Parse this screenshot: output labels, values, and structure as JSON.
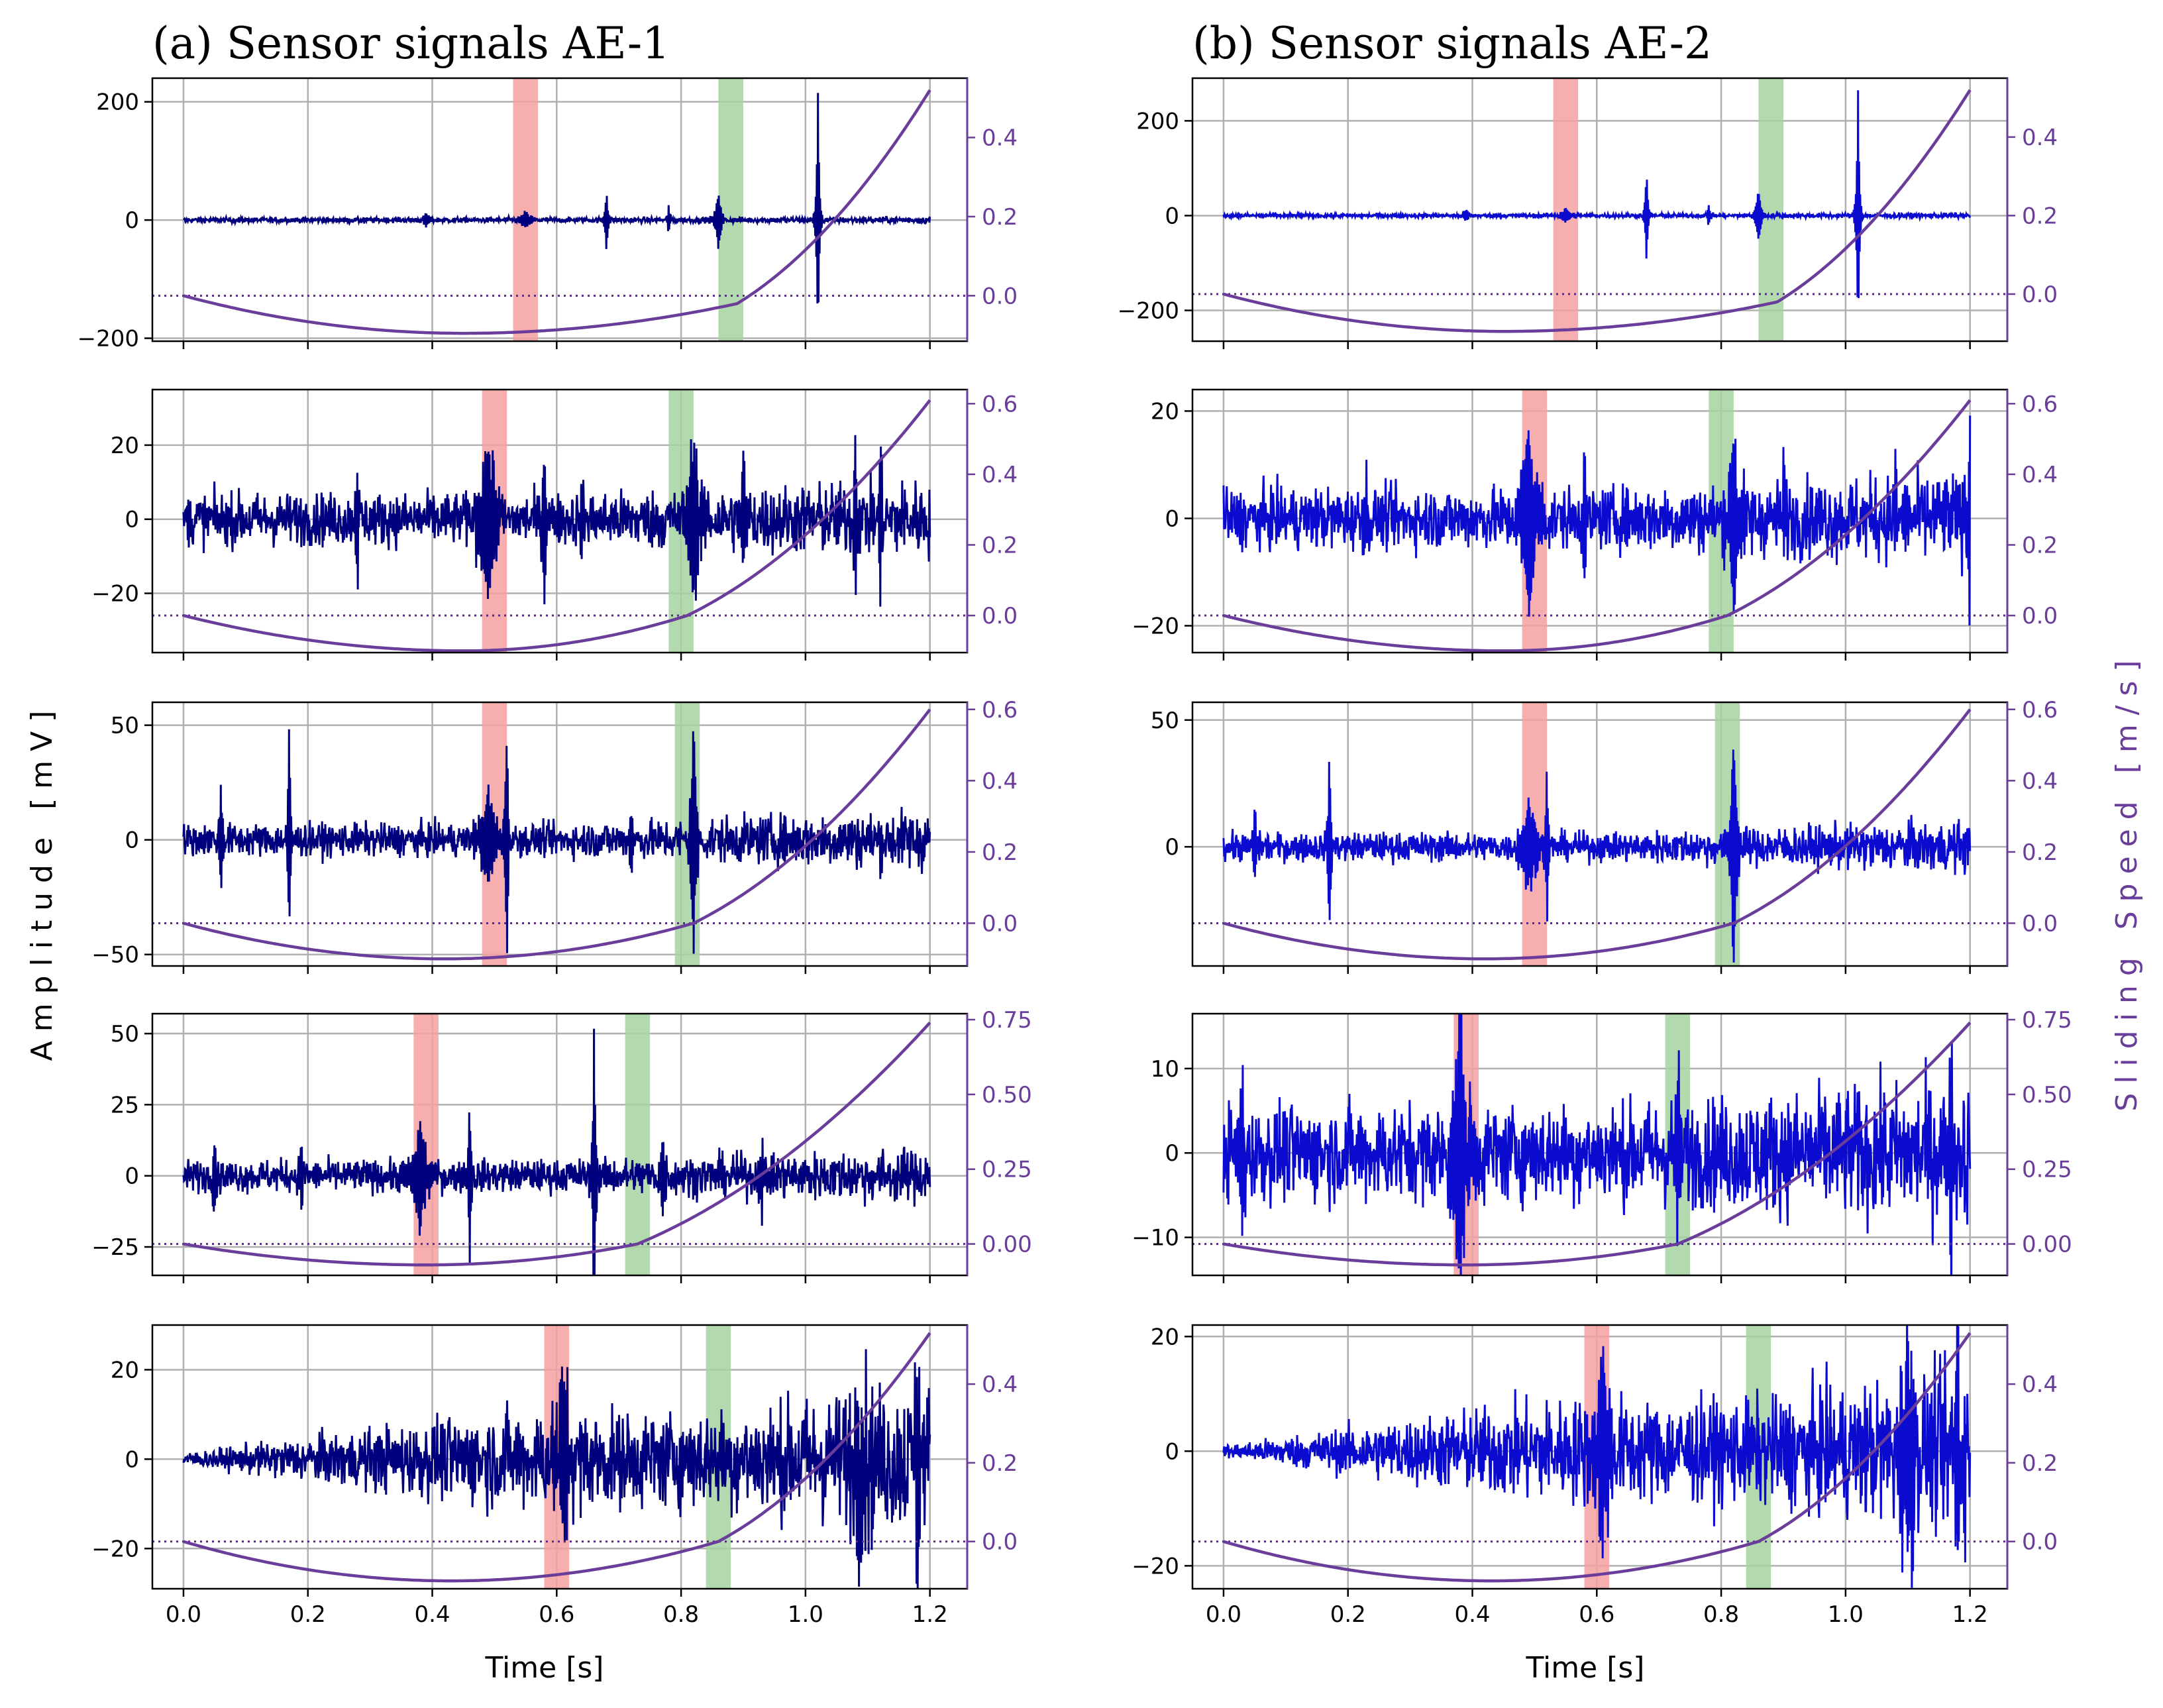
{
  "colors": {
    "signal_ae1": "#00007f",
    "signal_ae2": "#0b0bcf",
    "speed": "#6a3d9a",
    "zero_line": "#5a2a8a",
    "red_band": "#f4a0a0",
    "green_band": "#a6d4a0",
    "grid": "#b0b0b0",
    "right_axis": "#6a3d9a"
  },
  "chart_data": {
    "type": "line",
    "shared": {
      "left_ylabel": "Amplitude [mV]",
      "right_ylabel": "Sliding Speed [m/s]",
      "xlabel": "Time [s]",
      "x_range": [
        -0.05,
        1.26
      ],
      "x_ticks": [
        0.0,
        0.2,
        0.4,
        0.6,
        0.8,
        1.0,
        1.2
      ],
      "x_tick_labels": [
        "0.0",
        "0.2",
        "0.4",
        "0.6",
        "0.8",
        "1.0",
        "1.2"
      ],
      "grid": true
    },
    "columns": [
      {
        "title": "(a) Sensor signals AE-1",
        "signal_color_key": "signal_ae1",
        "rows": [
          {
            "ylim": [
              -205,
              240
            ],
            "y_ticks": [
              -200,
              0,
              200
            ],
            "y_tick_labels": [
              "−200",
              "0",
              "200"
            ],
            "rlim": [
              -0.115,
              0.55
            ],
            "r_ticks": [
              0.0,
              0.2,
              0.4
            ],
            "r_tick_labels": [
              "0.0",
              "0.2",
              "0.4"
            ],
            "red_band": [
              0.53,
              0.57
            ],
            "green_band": [
              0.86,
              0.9
            ],
            "speed": {
              "min": -0.095,
              "t_min": 0.45,
              "t_knee": 0.89,
              "v_knee": -0.02,
              "v_end": 0.52
            },
            "noise": 3,
            "noise_growth": 0.3,
            "bursts": [
              [
                0.09,
                6,
                0.004
              ],
              [
                0.29,
                6,
                0.004
              ],
              [
                0.39,
                12,
                0.005
              ],
              [
                0.55,
                14,
                0.008
              ],
              [
                0.68,
                55,
                0.002
              ],
              [
                0.78,
                25,
                0.002
              ],
              [
                0.86,
                50,
                0.004
              ],
              [
                1.02,
                220,
                0.002
              ]
            ]
          },
          {
            "ylim": [
              -36,
              35
            ],
            "y_ticks": [
              -20,
              0,
              20
            ],
            "y_tick_labels": [
              "−20",
              "0",
              "20"
            ],
            "rlim": [
              -0.105,
              0.64
            ],
            "r_ticks": [
              0.0,
              0.2,
              0.4,
              0.6
            ],
            "r_tick_labels": [
              "0.0",
              "0.2",
              "0.4",
              "0.6"
            ],
            "red_band": [
              0.48,
              0.52
            ],
            "green_band": [
              0.78,
              0.82
            ],
            "speed": {
              "min": -0.1,
              "t_min": 0.45,
              "t_knee": 0.81,
              "v_knee": 0.0,
              "v_end": 0.61
            },
            "noise": 5,
            "noise_growth": 0.5,
            "bursts": [
              [
                0.28,
                20,
                0.002
              ],
              [
                0.49,
                22,
                0.012
              ],
              [
                0.58,
                24,
                0.002
              ],
              [
                0.64,
                18,
                0.002
              ],
              [
                0.82,
                22,
                0.008
              ],
              [
                0.9,
                20,
                0.002
              ],
              [
                1.08,
                22,
                0.002
              ],
              [
                1.12,
                24,
                0.002
              ]
            ]
          },
          {
            "ylim": [
              -55,
              60
            ],
            "y_ticks": [
              -50,
              0,
              50
            ],
            "y_tick_labels": [
              "−50",
              "0",
              "50"
            ],
            "rlim": [
              -0.12,
              0.62
            ],
            "r_ticks": [
              0.0,
              0.2,
              0.4,
              0.6
            ],
            "r_tick_labels": [
              "0.0",
              "0.2",
              "0.4",
              "0.6"
            ],
            "red_band": [
              0.48,
              0.52
            ],
            "green_band": [
              0.79,
              0.83
            ],
            "speed": {
              "min": -0.1,
              "t_min": 0.42,
              "t_knee": 0.82,
              "v_knee": 0.0,
              "v_end": 0.6
            },
            "noise": 5,
            "noise_growth": 0.9,
            "bursts": [
              [
                0.06,
                28,
                0.002
              ],
              [
                0.17,
                50,
                0.002
              ],
              [
                0.49,
                22,
                0.01
              ],
              [
                0.52,
                56,
                0.002
              ],
              [
                0.72,
                12,
                0.004
              ],
              [
                0.82,
                50,
                0.004
              ]
            ]
          },
          {
            "ylim": [
              -35,
              57
            ],
            "y_ticks": [
              -25,
              0,
              25,
              50
            ],
            "y_tick_labels": [
              "−25",
              "0",
              "25",
              "50"
            ],
            "rlim": [
              -0.105,
              0.77
            ],
            "r_ticks": [
              0.0,
              0.25,
              0.5,
              0.75
            ],
            "r_tick_labels": [
              "0.00",
              "0.25",
              "0.50",
              "0.75"
            ],
            "red_band": [
              0.37,
              0.41
            ],
            "green_band": [
              0.71,
              0.75
            ],
            "speed": {
              "min": -0.07,
              "t_min": 0.39,
              "t_knee": 0.73,
              "v_knee": 0.0,
              "v_end": 0.74
            },
            "noise": 4,
            "noise_growth": 0.7,
            "bursts": [
              [
                0.05,
                12,
                0.003
              ],
              [
                0.19,
                14,
                0.002
              ],
              [
                0.38,
                18,
                0.01
              ],
              [
                0.46,
                34,
                0.002
              ],
              [
                0.66,
                54,
                0.002
              ],
              [
                0.77,
                17,
                0.003
              ],
              [
                0.93,
                12,
                0.002
              ]
            ]
          },
          {
            "ylim": [
              -29,
              30
            ],
            "y_ticks": [
              -20,
              0,
              20
            ],
            "y_tick_labels": [
              "−20",
              "0",
              "20"
            ],
            "rlim": [
              -0.12,
              0.55
            ],
            "r_ticks": [
              0.0,
              0.2,
              0.4
            ],
            "r_tick_labels": [
              "0.0",
              "0.2",
              "0.4"
            ],
            "red_band": [
              0.58,
              0.62
            ],
            "green_band": [
              0.84,
              0.88
            ],
            "speed": {
              "min": -0.1,
              "t_min": 0.43,
              "t_knee": 0.86,
              "v_knee": 0.0,
              "v_end": 0.53
            },
            "noise": 6,
            "growth": true,
            "bursts": [
              [
                0.61,
                18,
                0.01
              ],
              [
                1.09,
                20,
                0.01
              ],
              [
                1.18,
                27,
                0.004
              ]
            ]
          }
        ]
      },
      {
        "title": "(b) Sensor signals AE-2",
        "signal_color_key": "signal_ae2",
        "rows": [
          {
            "ylim": [
              -265,
              290
            ],
            "y_ticks": [
              -200,
              0,
              200
            ],
            "y_tick_labels": [
              "−200",
              "0",
              "200"
            ],
            "rlim": [
              -0.12,
              0.55
            ],
            "r_ticks": [
              0.0,
              0.2,
              0.4
            ],
            "r_tick_labels": [
              "0.0",
              "0.2",
              "0.4"
            ],
            "red_band": [
              0.53,
              0.57
            ],
            "green_band": [
              0.86,
              0.9
            ],
            "speed": {
              "min": -0.095,
              "t_min": 0.45,
              "t_knee": 0.89,
              "v_knee": -0.02,
              "v_end": 0.52
            },
            "noise": 3,
            "noise_growth": 0.3,
            "bursts": [
              [
                0.39,
                12,
                0.005
              ],
              [
                0.55,
                14,
                0.008
              ],
              [
                0.68,
                100,
                0.002
              ],
              [
                0.78,
                25,
                0.002
              ],
              [
                0.86,
                55,
                0.004
              ],
              [
                1.02,
                265,
                0.002
              ]
            ]
          },
          {
            "ylim": [
              -25,
              24
            ],
            "y_ticks": [
              -20,
              0,
              20
            ],
            "y_tick_labels": [
              "−20",
              "0",
              "20"
            ],
            "rlim": [
              -0.105,
              0.64
            ],
            "r_ticks": [
              0.0,
              0.2,
              0.4,
              0.6
            ],
            "r_tick_labels": [
              "0.0",
              "0.2",
              "0.4",
              "0.6"
            ],
            "red_band": [
              0.48,
              0.52
            ],
            "green_band": [
              0.78,
              0.82
            ],
            "speed": {
              "min": -0.1,
              "t_min": 0.45,
              "t_knee": 0.81,
              "v_knee": 0.0,
              "v_end": 0.61
            },
            "noise": 4,
            "noise_growth": 0.5,
            "bursts": [
              [
                0.23,
                10,
                0.002
              ],
              [
                0.49,
                16,
                0.012
              ],
              [
                0.58,
                16,
                0.002
              ],
              [
                0.82,
                14,
                0.008
              ],
              [
                0.9,
                12,
                0.002
              ],
              [
                1.08,
                13,
                0.002
              ],
              [
                1.2,
                22,
                0.002
              ]
            ]
          },
          {
            "ylim": [
              -47,
              57
            ],
            "y_ticks": [
              0,
              50
            ],
            "y_tick_labels": [
              "0",
              "50"
            ],
            "rlim": [
              -0.12,
              0.62
            ],
            "r_ticks": [
              0.0,
              0.2,
              0.4,
              0.6
            ],
            "r_tick_labels": [
              "0.0",
              "0.2",
              "0.4",
              "0.6"
            ],
            "red_band": [
              0.48,
              0.52
            ],
            "green_band": [
              0.79,
              0.83
            ],
            "speed": {
              "min": -0.1,
              "t_min": 0.42,
              "t_knee": 0.82,
              "v_knee": 0.0,
              "v_end": 0.6
            },
            "noise": 4,
            "noise_growth": 0.8,
            "bursts": [
              [
                0.05,
                18,
                0.002
              ],
              [
                0.17,
                38,
                0.002
              ],
              [
                0.49,
                18,
                0.01
              ],
              [
                0.52,
                33,
                0.002
              ],
              [
                0.82,
                48,
                0.004
              ]
            ]
          },
          {
            "ylim": [
              -14.5,
              16.5
            ],
            "y_ticks": [
              -10,
              0,
              10
            ],
            "y_tick_labels": [
              "−10",
              "0",
              "10"
            ],
            "rlim": [
              -0.105,
              0.77
            ],
            "r_ticks": [
              0.0,
              0.25,
              0.5,
              0.75
            ],
            "r_tick_labels": [
              "0.00",
              "0.25",
              "0.50",
              "0.75"
            ],
            "red_band": [
              0.37,
              0.41
            ],
            "green_band": [
              0.71,
              0.75
            ],
            "speed": {
              "min": -0.07,
              "t_min": 0.39,
              "t_knee": 0.73,
              "v_knee": 0.0,
              "v_end": 0.74
            },
            "noise": 4,
            "noise_growth": 0.5,
            "bursts": [
              [
                0.03,
                12,
                0.003
              ],
              [
                0.38,
                15,
                0.01
              ],
              [
                0.73,
                10,
                0.004
              ],
              [
                1.17,
                11,
                0.002
              ]
            ]
          },
          {
            "ylim": [
              -24,
              22
            ],
            "y_ticks": [
              -20,
              0,
              20
            ],
            "y_tick_labels": [
              "−20",
              "0",
              "20"
            ],
            "rlim": [
              -0.12,
              0.55
            ],
            "r_ticks": [
              0.0,
              0.2,
              0.4
            ],
            "r_tick_labels": [
              "0.0",
              "0.2",
              "0.4"
            ],
            "red_band": [
              0.58,
              0.62
            ],
            "green_band": [
              0.84,
              0.88
            ],
            "speed": {
              "min": -0.1,
              "t_min": 0.43,
              "t_knee": 0.86,
              "v_knee": 0.0,
              "v_end": 0.53
            },
            "noise": 5,
            "growth": true,
            "bursts": [
              [
                0.61,
                15,
                0.01
              ],
              [
                1.1,
                18,
                0.01
              ],
              [
                1.18,
                22,
                0.004
              ]
            ]
          }
        ]
      }
    ]
  }
}
